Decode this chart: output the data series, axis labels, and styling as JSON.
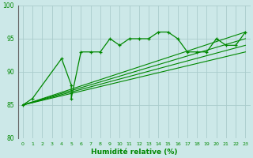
{
  "xlabel": "Humidité relative (%)",
  "xlim": [
    -0.5,
    23.5
  ],
  "ylim": [
    80,
    100
  ],
  "yticks": [
    80,
    85,
    90,
    95,
    100
  ],
  "xticks": [
    0,
    1,
    2,
    3,
    4,
    5,
    6,
    7,
    8,
    9,
    10,
    11,
    12,
    13,
    14,
    15,
    16,
    17,
    18,
    19,
    20,
    21,
    22,
    23
  ],
  "bg_color": "#cce8e8",
  "grid_color": "#aacccc",
  "line_color": "#008800",
  "marked_line": {
    "x": [
      0,
      1,
      4,
      5,
      5,
      6,
      7,
      8,
      9,
      10,
      11,
      12,
      13,
      14,
      15,
      16,
      17,
      18,
      19,
      20,
      21,
      22,
      23
    ],
    "y": [
      85,
      86,
      92,
      88,
      86,
      93,
      93,
      93,
      95,
      94,
      95,
      95,
      95,
      96,
      96,
      95,
      93,
      93,
      93,
      95,
      94,
      94,
      96
    ]
  },
  "straight_lines": [
    {
      "x0": 0,
      "y0": 85,
      "x1": 23,
      "y1": 96
    },
    {
      "x0": 0,
      "y0": 85,
      "x1": 23,
      "y1": 95
    },
    {
      "x0": 0,
      "y0": 85,
      "x1": 23,
      "y1": 94
    },
    {
      "x0": 0,
      "y0": 85,
      "x1": 23,
      "y1": 93
    }
  ]
}
